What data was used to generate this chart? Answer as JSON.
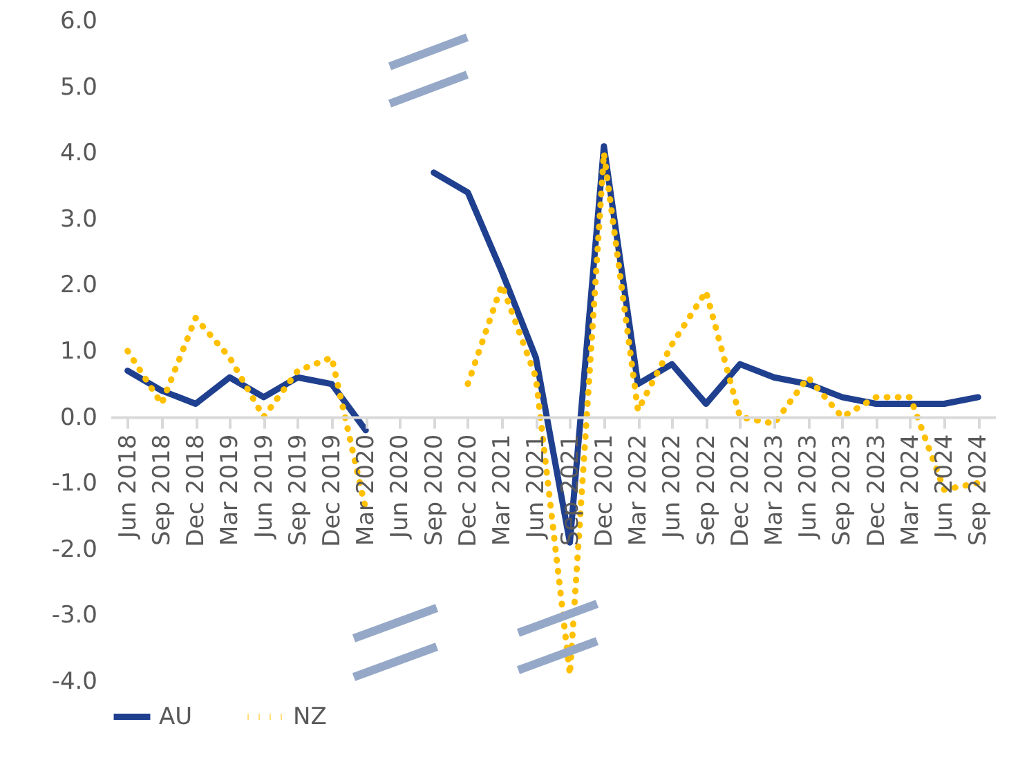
{
  "chart_data": {
    "type": "line",
    "categories": [
      "Jun 2018",
      "Sep 2018",
      "Dec 2018",
      "Mar 2019",
      "Jun 2019",
      "Sep 2019",
      "Dec 2019",
      "Mar 2020",
      "Jun 2020",
      "Sep 2020",
      "Dec 2020",
      "Mar 2021",
      "Jun 2021",
      "Sep 2021",
      "Dec 2021",
      "Mar 2022",
      "Jun 2022",
      "Sep 2022",
      "Dec 2022",
      "Mar 2023",
      "Jun 2023",
      "Sep 2023",
      "Dec 2023",
      "Mar 2024",
      "Jun 2024",
      "Sep 2024"
    ],
    "series": [
      {
        "name": "AU",
        "color": "#1f3f8f",
        "line_style": "solid",
        "values": [
          0.7,
          0.4,
          0.2,
          0.6,
          0.3,
          0.6,
          0.5,
          -0.2,
          null,
          3.7,
          3.4,
          2.2,
          0.9,
          -1.9,
          4.1,
          0.5,
          0.8,
          0.2,
          0.8,
          0.6,
          0.5,
          0.3,
          0.2,
          0.2,
          0.2,
          0.3
        ]
      },
      {
        "name": "NZ",
        "color": "#ffc000",
        "line_style": "dotted",
        "values": [
          1.0,
          0.2,
          1.5,
          0.9,
          0.0,
          0.7,
          0.9,
          -1.4,
          null,
          null,
          0.5,
          2.0,
          0.6,
          -3.9,
          4.0,
          0.1,
          1.1,
          1.9,
          0.0,
          -0.1,
          0.6,
          0.0,
          0.3,
          0.3,
          -1.1,
          -1.0
        ]
      }
    ],
    "ylim": [
      -4,
      6
    ],
    "yticks": [
      {
        "value": -4,
        "label": "-4.0"
      },
      {
        "value": -3,
        "label": "-3.0"
      },
      {
        "value": -2,
        "label": "-2.0"
      },
      {
        "value": -1,
        "label": "-1.0"
      },
      {
        "value": 0,
        "label": "0.0"
      },
      {
        "value": 1,
        "label": "1.0"
      },
      {
        "value": 2,
        "label": "2.0"
      },
      {
        "value": 3,
        "label": "3.0"
      },
      {
        "value": 4,
        "label": "4.0"
      },
      {
        "value": 5,
        "label": "5.0"
      },
      {
        "value": 6,
        "label": "6.0"
      }
    ],
    "legend": "bottom"
  }
}
